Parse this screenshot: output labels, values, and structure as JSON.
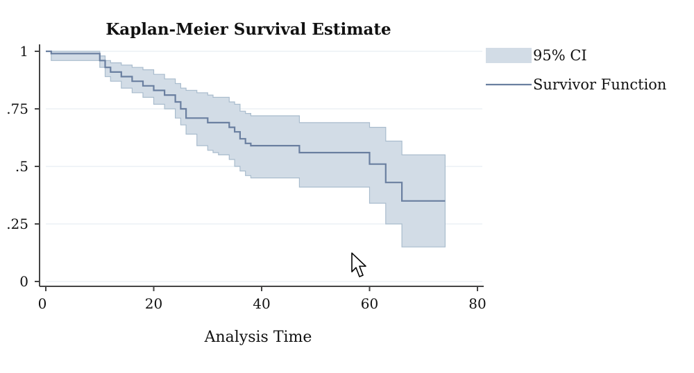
{
  "chart_data": {
    "type": "line",
    "title": "Kaplan-Meier Survival Estimate",
    "xlabel": "Analysis Time",
    "ylabel": "",
    "xlim": [
      0,
      80
    ],
    "ylim": [
      0,
      1
    ],
    "x_ticks": [
      {
        "value": 0,
        "label": "0"
      },
      {
        "value": 20,
        "label": "20"
      },
      {
        "value": 40,
        "label": "40"
      },
      {
        "value": 60,
        "label": "60"
      },
      {
        "value": 80,
        "label": "80"
      }
    ],
    "y_ticks": [
      {
        "value": 0,
        "label": "0"
      },
      {
        "value": 0.25,
        "label": ".25"
      },
      {
        "value": 0.5,
        "label": ".5"
      },
      {
        "value": 0.75,
        "label": ".75"
      },
      {
        "value": 1,
        "label": "1"
      }
    ],
    "grid": "horizontal",
    "legend_position": "right",
    "legend": [
      {
        "label": "95% CI",
        "kind": "band"
      },
      {
        "label": "Survivor Function",
        "kind": "line"
      }
    ],
    "colors": {
      "ci_fill": "#d2dce6",
      "ci_edge": "#a9bccd",
      "survivor_line": "#6a7fa0",
      "grid": "#e6eef2",
      "axis": "#444444"
    },
    "series": [
      {
        "name": "Survivor Function",
        "x": [
          0,
          1,
          10,
          11,
          12,
          14,
          16,
          18,
          20,
          22,
          24,
          25,
          26,
          28,
          30,
          31,
          32,
          34,
          35,
          36,
          37,
          38,
          47,
          60,
          63,
          66,
          74
        ],
        "y": [
          1,
          0.99,
          0.96,
          0.93,
          0.91,
          0.89,
          0.87,
          0.85,
          0.83,
          0.81,
          0.78,
          0.75,
          0.71,
          0.71,
          0.69,
          0.69,
          0.69,
          0.67,
          0.65,
          0.62,
          0.6,
          0.59,
          0.56,
          0.51,
          0.43,
          0.35,
          0.35
        ],
        "lower": [
          1,
          0.96,
          0.93,
          0.89,
          0.87,
          0.84,
          0.82,
          0.8,
          0.77,
          0.75,
          0.71,
          0.68,
          0.64,
          0.59,
          0.57,
          0.56,
          0.55,
          0.53,
          0.5,
          0.48,
          0.46,
          0.45,
          0.41,
          0.34,
          0.25,
          0.15,
          0.15
        ],
        "upper": [
          1,
          1.0,
          0.98,
          0.96,
          0.95,
          0.94,
          0.93,
          0.92,
          0.9,
          0.88,
          0.86,
          0.84,
          0.83,
          0.82,
          0.81,
          0.8,
          0.8,
          0.78,
          0.77,
          0.74,
          0.73,
          0.72,
          0.69,
          0.67,
          0.61,
          0.55,
          0.55
        ]
      }
    ]
  }
}
